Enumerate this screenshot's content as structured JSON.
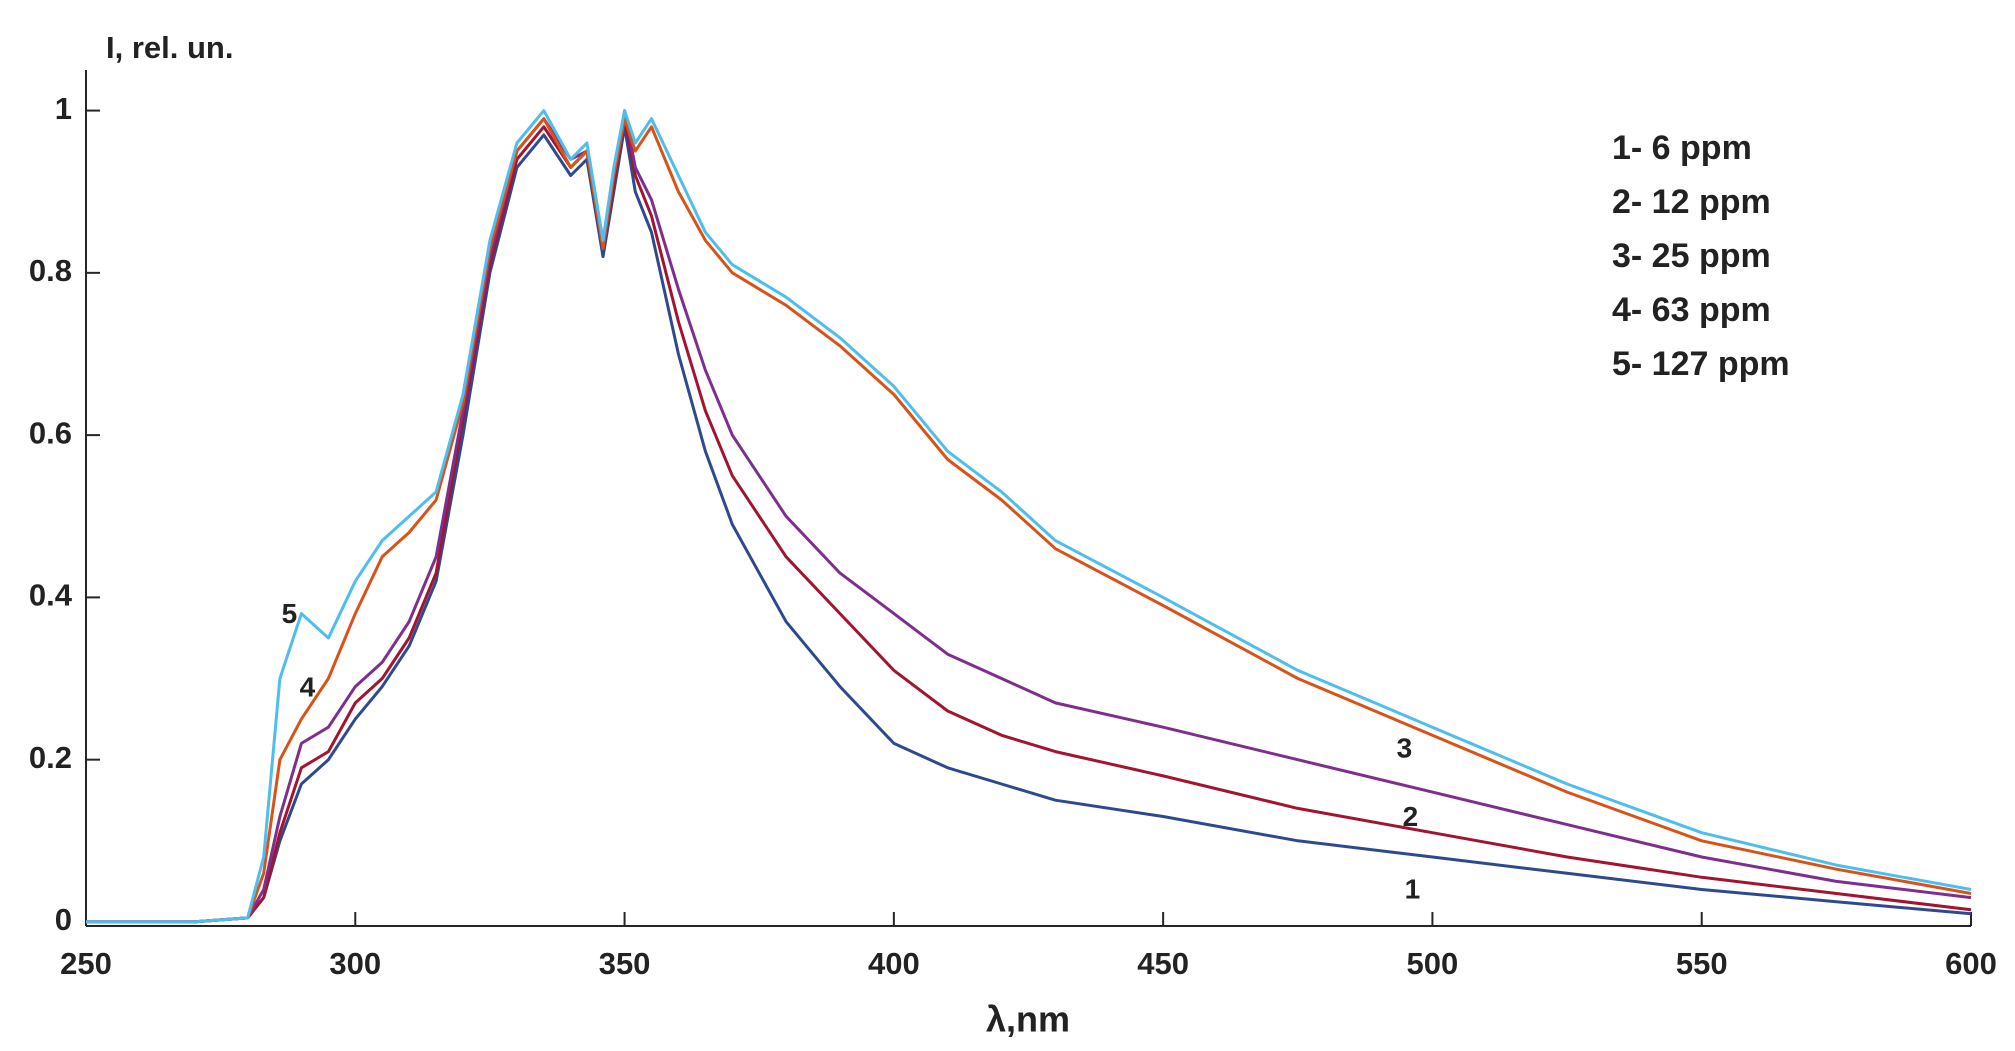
{
  "chart_data": {
    "type": "line",
    "y_label": "I, rel. un.",
    "x_label": "λ,nm",
    "x": [
      250,
      260,
      270,
      280,
      283,
      286,
      290,
      295,
      300,
      305,
      310,
      315,
      320,
      325,
      330,
      335,
      340,
      343,
      346,
      348,
      350,
      352,
      355,
      360,
      365,
      370,
      380,
      390,
      400,
      410,
      420,
      430,
      450,
      475,
      500,
      525,
      550,
      575,
      600
    ],
    "series": [
      {
        "name": "1- 6 ppm",
        "color": "#2e4a8f",
        "values": [
          0,
          0,
          0,
          0.005,
          0.03,
          0.1,
          0.17,
          0.2,
          0.25,
          0.29,
          0.34,
          0.42,
          0.6,
          0.8,
          0.93,
          0.97,
          0.92,
          0.94,
          0.82,
          0.9,
          0.98,
          0.9,
          0.85,
          0.7,
          0.58,
          0.49,
          0.37,
          0.29,
          0.22,
          0.19,
          0.17,
          0.15,
          0.13,
          0.1,
          0.08,
          0.06,
          0.04,
          0.025,
          0.01
        ]
      },
      {
        "name": "2- 12 ppm",
        "color": "#a2142f",
        "values": [
          0,
          0,
          0,
          0.005,
          0.03,
          0.11,
          0.19,
          0.21,
          0.27,
          0.3,
          0.35,
          0.43,
          0.62,
          0.81,
          0.94,
          0.98,
          0.93,
          0.95,
          0.83,
          0.91,
          0.99,
          0.92,
          0.87,
          0.74,
          0.63,
          0.55,
          0.45,
          0.38,
          0.31,
          0.26,
          0.23,
          0.21,
          0.18,
          0.14,
          0.11,
          0.08,
          0.055,
          0.035,
          0.015
        ]
      },
      {
        "name": "3- 25 ppm",
        "color": "#7e2f8e",
        "values": [
          0,
          0,
          0,
          0.005,
          0.04,
          0.13,
          0.22,
          0.24,
          0.29,
          0.32,
          0.37,
          0.45,
          0.63,
          0.82,
          0.95,
          0.99,
          0.94,
          0.95,
          0.84,
          0.92,
          1,
          0.93,
          0.89,
          0.78,
          0.68,
          0.6,
          0.5,
          0.43,
          0.38,
          0.33,
          0.3,
          0.27,
          0.24,
          0.2,
          0.16,
          0.12,
          0.08,
          0.05,
          0.03
        ]
      },
      {
        "name": "4- 63 ppm",
        "color": "#d95319",
        "values": [
          0,
          0,
          0,
          0.005,
          0.06,
          0.2,
          0.25,
          0.3,
          0.38,
          0.45,
          0.48,
          0.52,
          0.64,
          0.83,
          0.95,
          0.99,
          0.93,
          0.95,
          0.83,
          0.92,
          0.99,
          0.95,
          0.98,
          0.9,
          0.84,
          0.8,
          0.76,
          0.71,
          0.65,
          0.57,
          0.52,
          0.46,
          0.39,
          0.3,
          0.23,
          0.16,
          0.1,
          0.065,
          0.035
        ]
      },
      {
        "name": "5- 127 ppm",
        "color": "#4dbeee",
        "values": [
          0,
          0,
          0,
          0.005,
          0.08,
          0.3,
          0.38,
          0.35,
          0.42,
          0.47,
          0.5,
          0.53,
          0.65,
          0.84,
          0.96,
          1,
          0.94,
          0.96,
          0.84,
          0.93,
          1,
          0.96,
          0.99,
          0.92,
          0.85,
          0.81,
          0.77,
          0.72,
          0.66,
          0.58,
          0.53,
          0.47,
          0.4,
          0.31,
          0.24,
          0.17,
          0.11,
          0.07,
          0.04
        ]
      }
    ],
    "curve_labels": [
      "1",
      "2",
      "3",
      "4",
      "5"
    ],
    "xlim": [
      250,
      600
    ],
    "ylim": [
      -0.005,
      1.05
    ],
    "xticks": [
      250,
      300,
      350,
      400,
      450,
      500,
      550,
      600
    ],
    "yticks": [
      0,
      0.2,
      0.4,
      0.6,
      0.8,
      1
    ]
  }
}
